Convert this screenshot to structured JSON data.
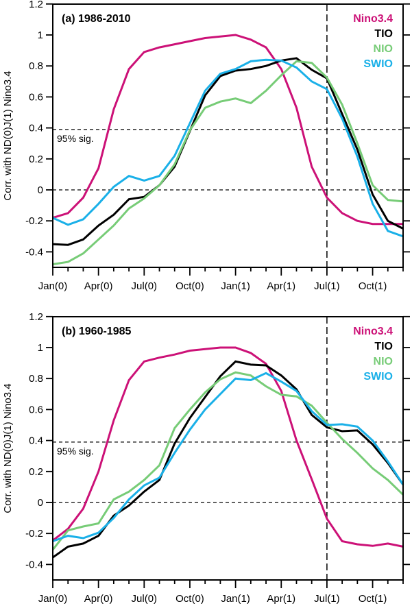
{
  "chart_data": [
    {
      "type": "line",
      "title": "(a) 1986-2010",
      "xlabel": "",
      "ylabel": "Corr. with ND(0)J(1) Nino3.4",
      "ylim": [
        -0.52,
        1.2
      ],
      "yticks": [
        "1.2",
        "1",
        "0.8",
        "0.6",
        "0.4",
        "0.2",
        "0",
        "-0.2",
        "-0.4"
      ],
      "ytick_values": [
        1.2,
        1,
        0.8,
        0.6,
        0.4,
        0.2,
        0,
        -0.2,
        -0.4
      ],
      "xticks": [
        "Jan(0)",
        "Apr(0)",
        "Jul(0)",
        "Oct(0)",
        "Jan(1)",
        "Apr(1)",
        "Jul(1)",
        "Oct(1)"
      ],
      "xtick_months": [
        0,
        3,
        6,
        9,
        12,
        15,
        18,
        21
      ],
      "x": [
        "Jan(0)",
        "Feb(0)",
        "Mar(0)",
        "Apr(0)",
        "May(0)",
        "Jun(0)",
        "Jul(0)",
        "Aug(0)",
        "Sep(0)",
        "Oct(0)",
        "Nov(0)",
        "Dec(0)",
        "Jan(1)",
        "Feb(1)",
        "Mar(1)",
        "Apr(1)",
        "May(1)",
        "Jun(1)",
        "Jul(1)",
        "Aug(1)",
        "Sep(1)",
        "Oct(1)",
        "Nov(1)",
        "Dec(1)"
      ],
      "significance": {
        "value": 0.39,
        "label": "95% sig."
      },
      "zero_line": 0,
      "vertical_marker": "Jul(1)",
      "legend_position": "top-right",
      "series": [
        {
          "name": "Nino3.4",
          "color": "#cc1177",
          "values": [
            -0.18,
            -0.15,
            -0.05,
            0.14,
            0.52,
            0.78,
            0.89,
            0.92,
            0.94,
            0.96,
            0.98,
            0.99,
            1.0,
            0.97,
            0.92,
            0.78,
            0.53,
            0.15,
            -0.05,
            -0.15,
            -0.2,
            -0.22,
            -0.22,
            -0.22
          ]
        },
        {
          "name": "TIO",
          "color": "#000000",
          "values": [
            -0.35,
            -0.355,
            -0.32,
            -0.23,
            -0.16,
            -0.06,
            -0.045,
            0.03,
            0.15,
            0.38,
            0.61,
            0.735,
            0.77,
            0.78,
            0.8,
            0.835,
            0.85,
            0.775,
            0.72,
            0.49,
            0.26,
            -0.03,
            -0.2,
            -0.25
          ]
        },
        {
          "name": "NIO",
          "color": "#77cc77",
          "values": [
            -0.48,
            -0.465,
            -0.41,
            -0.32,
            -0.23,
            -0.12,
            -0.055,
            0.03,
            0.165,
            0.385,
            0.53,
            0.57,
            0.59,
            0.56,
            0.64,
            0.74,
            0.83,
            0.82,
            0.725,
            0.55,
            0.3,
            0.03,
            -0.065,
            -0.075
          ]
        },
        {
          "name": "SWIO",
          "color": "#1ab0e8",
          "values": [
            -0.18,
            -0.225,
            -0.19,
            -0.09,
            0.02,
            0.09,
            0.06,
            0.09,
            0.22,
            0.43,
            0.64,
            0.75,
            0.78,
            0.83,
            0.84,
            0.835,
            0.79,
            0.7,
            0.65,
            0.46,
            0.215,
            -0.09,
            -0.265,
            -0.3
          ]
        }
      ]
    },
    {
      "type": "line",
      "title": "(b) 1960-1985",
      "xlabel": "",
      "ylabel": "Corr. with ND(0)J(1) Nino3.4",
      "ylim": [
        -0.52,
        1.2
      ],
      "yticks": [
        "1.2",
        "1",
        "0.8",
        "0.6",
        "0.4",
        "0.2",
        "0",
        "-0.2",
        "-0.4"
      ],
      "ytick_values": [
        1.2,
        1,
        0.8,
        0.6,
        0.4,
        0.2,
        0,
        -0.2,
        -0.4
      ],
      "xticks": [
        "Jan(0)",
        "Apr(0)",
        "Jul(0)",
        "Oct(0)",
        "Jan(1)",
        "Apr(1)",
        "Jul(1)",
        "Oct(1)"
      ],
      "xtick_months": [
        0,
        3,
        6,
        9,
        12,
        15,
        18,
        21
      ],
      "x": [
        "Jan(0)",
        "Feb(0)",
        "Mar(0)",
        "Apr(0)",
        "May(0)",
        "Jun(0)",
        "Jul(0)",
        "Aug(0)",
        "Sep(0)",
        "Oct(0)",
        "Nov(0)",
        "Dec(0)",
        "Jan(1)",
        "Feb(1)",
        "Mar(1)",
        "Apr(1)",
        "May(1)",
        "Jun(1)",
        "Jul(1)",
        "Aug(1)",
        "Sep(1)",
        "Oct(1)",
        "Nov(1)",
        "Dec(1)"
      ],
      "significance": {
        "value": 0.39,
        "label": "95% sig."
      },
      "zero_line": 0,
      "vertical_marker": "Jul(1)",
      "legend_position": "top-right",
      "series": [
        {
          "name": "Nino3.4",
          "color": "#cc1177",
          "values": [
            -0.245,
            -0.17,
            -0.04,
            0.2,
            0.53,
            0.79,
            0.91,
            0.935,
            0.955,
            0.98,
            0.99,
            1.0,
            1.0,
            0.965,
            0.895,
            0.72,
            0.4,
            0.15,
            -0.105,
            -0.25,
            -0.27,
            -0.28,
            -0.265,
            -0.285
          ]
        },
        {
          "name": "TIO",
          "color": "#000000",
          "values": [
            -0.355,
            -0.285,
            -0.265,
            -0.215,
            -0.085,
            -0.02,
            0.07,
            0.145,
            0.38,
            0.545,
            0.68,
            0.815,
            0.91,
            0.89,
            0.885,
            0.82,
            0.73,
            0.565,
            0.485,
            0.46,
            0.465,
            0.375,
            0.255,
            0.115
          ]
        },
        {
          "name": "NIO",
          "color": "#77cc77",
          "values": [
            -0.305,
            -0.18,
            -0.155,
            -0.135,
            0.02,
            0.07,
            0.145,
            0.24,
            0.48,
            0.6,
            0.71,
            0.795,
            0.84,
            0.82,
            0.75,
            0.695,
            0.685,
            0.625,
            0.515,
            0.41,
            0.32,
            0.22,
            0.145,
            0.05
          ]
        },
        {
          "name": "SWIO",
          "color": "#1ab0e8",
          "values": [
            -0.25,
            -0.215,
            -0.23,
            -0.195,
            -0.1,
            0.02,
            0.11,
            0.16,
            0.32,
            0.47,
            0.6,
            0.7,
            0.8,
            0.79,
            0.835,
            0.78,
            0.72,
            0.59,
            0.5,
            0.505,
            0.49,
            0.4,
            0.265,
            0.115
          ]
        }
      ]
    }
  ]
}
